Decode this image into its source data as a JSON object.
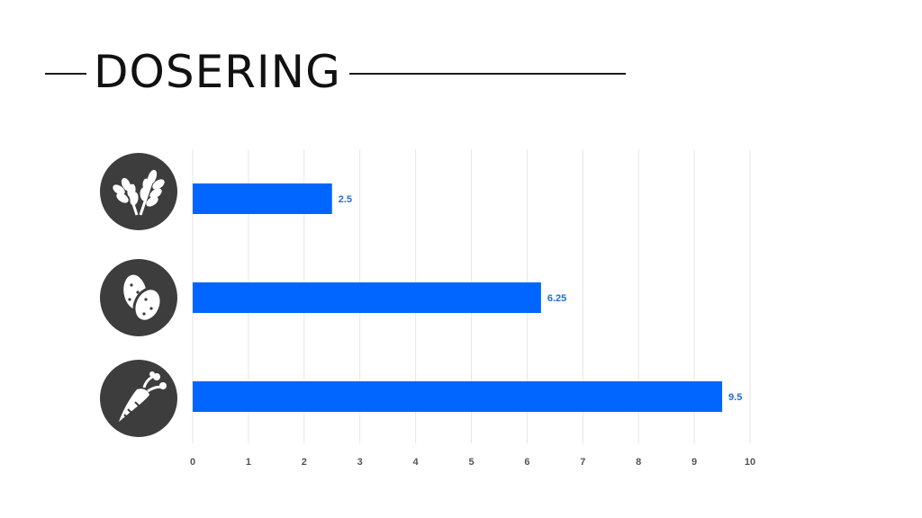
{
  "header": {
    "title": "DOSERING"
  },
  "colors": {
    "bar": "#0066ff",
    "icon_bg": "#3d3d3d",
    "grid": "#e6e6e6",
    "value_label": "#1f6fd6"
  },
  "chart_data": {
    "type": "bar",
    "orientation": "horizontal",
    "title": "DOSERING",
    "categories": [
      "wheat-icon",
      "potatoes-icon",
      "carrot-icon"
    ],
    "values": [
      2.5,
      6.25,
      9.5
    ],
    "value_labels": [
      "2.5",
      "6.25",
      "9.5"
    ],
    "xlim": [
      0,
      10
    ],
    "xticks": [
      "0",
      "1",
      "2",
      "3",
      "4",
      "5",
      "6",
      "7",
      "8",
      "9",
      "10"
    ],
    "grid": "vertical",
    "legend": "none",
    "xlabel": "",
    "ylabel": ""
  }
}
